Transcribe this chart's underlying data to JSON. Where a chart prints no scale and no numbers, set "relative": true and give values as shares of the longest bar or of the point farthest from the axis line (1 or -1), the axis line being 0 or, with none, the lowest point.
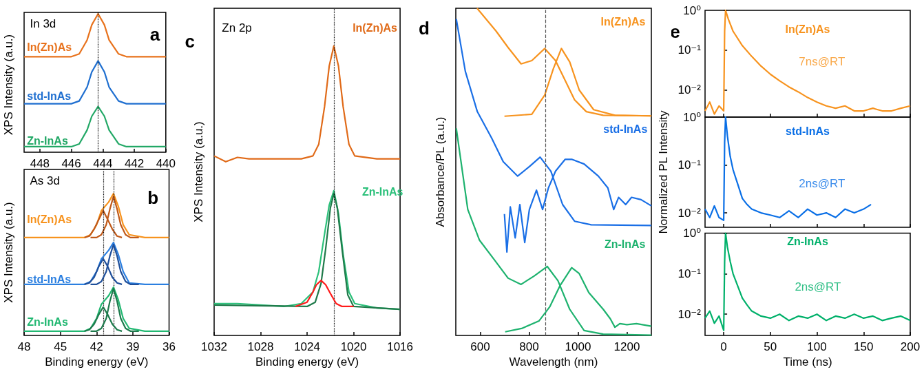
{
  "chart_data": [
    {
      "type": "line",
      "relative": true,
      "ylabel": "XPS Intensity (a.u.)",
      "xlim": [
        449,
        440
      ],
      "xticks": [
        448,
        446,
        444,
        442,
        440
      ],
      "tick_labels": "x",
      "annotations": [
        "In 3d",
        "a"
      ],
      "ref_lines": [
        {
          "axis": "x",
          "value": 444.3,
          "color": "#000000",
          "line_style": "dotted"
        }
      ],
      "series": [
        {
          "name": "In(Zn)As",
          "color": "#e8721c",
          "x": [
            449,
            447,
            446,
            445.5,
            445,
            444.7,
            444.3,
            443.9,
            443.6,
            443,
            442.5,
            441,
            440
          ],
          "values": [
            0.69,
            0.69,
            0.69,
            0.71,
            0.81,
            0.92,
            1,
            0.92,
            0.81,
            0.71,
            0.69,
            0.69,
            0.69
          ]
        },
        {
          "name": "std-InAs",
          "color": "#1f6fd0",
          "x": [
            449,
            447,
            446,
            445.5,
            445,
            444.7,
            444.3,
            443.9,
            443.6,
            443,
            442.5,
            441,
            440
          ],
          "values": [
            0.35,
            0.35,
            0.35,
            0.37,
            0.47,
            0.58,
            0.66,
            0.58,
            0.47,
            0.37,
            0.35,
            0.35,
            0.35
          ]
        },
        {
          "name": "Zn-InAs",
          "color": "#22a866",
          "x": [
            449,
            447,
            446,
            445.5,
            445,
            444.7,
            444.3,
            443.9,
            443.6,
            443,
            442.5,
            441,
            440
          ],
          "values": [
            0.04,
            0.04,
            0.04,
            0.06,
            0.16,
            0.26,
            0.33,
            0.26,
            0.16,
            0.06,
            0.04,
            0.04,
            0.04
          ]
        }
      ]
    },
    {
      "type": "line",
      "relative": true,
      "ylabel": "XPS Intensity (a.u.)",
      "xlabel": "Binding energy (eV)",
      "xlim": [
        48,
        36
      ],
      "xticks": [
        48,
        45,
        42,
        39,
        36
      ],
      "tick_labels": "x",
      "annotations": [
        "As 3d",
        "b"
      ],
      "ref_lines": [
        {
          "axis": "x",
          "value": 41.45,
          "color": "#000000",
          "line_style": "dotted"
        },
        {
          "axis": "x",
          "value": 40.6,
          "color": "#000000",
          "line_style": "dotted"
        }
      ],
      "series": [
        {
          "name": "In(Zn)As",
          "color": "#f7931e",
          "x": [
            48,
            44,
            43,
            42.5,
            42,
            41.6,
            41.3,
            41,
            40.6,
            40.2,
            39.8,
            39.3,
            38,
            36
          ],
          "values": [
            0.69,
            0.69,
            0.69,
            0.71,
            0.78,
            0.88,
            0.91,
            0.94,
            1,
            0.91,
            0.78,
            0.71,
            0.69,
            0.69
          ]
        },
        {
          "color": "#c05a1a",
          "x": [
            42.5,
            42,
            41.6,
            41.2,
            40.9,
            40.6,
            40.3,
            40,
            39.6,
            39.2,
            38.5
          ],
          "values": [
            0.69,
            0.69,
            0.71,
            0.78,
            0.89,
            0.98,
            0.89,
            0.78,
            0.71,
            0.69,
            0.69
          ]
        },
        {
          "color": "#c05a1a",
          "x": [
            43,
            42.6,
            42.2,
            41.8,
            41.45,
            41.1,
            40.7,
            40.3,
            39.9
          ],
          "values": [
            0.69,
            0.7,
            0.75,
            0.82,
            0.88,
            0.82,
            0.75,
            0.7,
            0.69
          ]
        },
        {
          "name": "std-InAs",
          "color": "#2b7fe0",
          "x": [
            48,
            44,
            43,
            42.5,
            42,
            41.6,
            41.3,
            41,
            40.6,
            40.2,
            39.8,
            39.3,
            38,
            36
          ],
          "values": [
            0.36,
            0.36,
            0.36,
            0.38,
            0.45,
            0.54,
            0.57,
            0.6,
            0.655,
            0.57,
            0.45,
            0.37,
            0.36,
            0.36
          ]
        },
        {
          "color": "#1f4f9a",
          "x": [
            42.5,
            42,
            41.6,
            41.2,
            40.9,
            40.6,
            40.3,
            40,
            39.6,
            39.2,
            38.5
          ],
          "values": [
            0.36,
            0.36,
            0.38,
            0.45,
            0.56,
            0.64,
            0.56,
            0.45,
            0.38,
            0.36,
            0.36
          ]
        },
        {
          "color": "#1f4f9a",
          "x": [
            43,
            42.6,
            42.2,
            41.8,
            41.45,
            41.1,
            40.7,
            40.3,
            39.9
          ],
          "values": [
            0.36,
            0.37,
            0.41,
            0.49,
            0.54,
            0.49,
            0.41,
            0.37,
            0.36
          ]
        },
        {
          "name": "Zn-InAs",
          "color": "#22b872",
          "x": [
            48,
            44,
            43,
            42.5,
            42,
            41.6,
            41.3,
            41,
            40.6,
            40.2,
            39.8,
            39.3,
            38,
            36
          ],
          "values": [
            0.03,
            0.03,
            0.03,
            0.05,
            0.12,
            0.22,
            0.25,
            0.28,
            0.34,
            0.25,
            0.12,
            0.05,
            0.03,
            0.03
          ]
        },
        {
          "color": "#1d7a4c",
          "x": [
            42.5,
            42,
            41.6,
            41.2,
            40.9,
            40.6,
            40.3,
            40,
            39.6,
            39.2,
            38.5
          ],
          "values": [
            0.03,
            0.03,
            0.05,
            0.12,
            0.24,
            0.33,
            0.24,
            0.12,
            0.05,
            0.03,
            0.03
          ]
        },
        {
          "color": "#1d7a4c",
          "x": [
            43,
            42.6,
            42.2,
            41.8,
            41.45,
            41.1,
            40.7,
            40.3,
            39.9
          ],
          "values": [
            0.03,
            0.04,
            0.08,
            0.15,
            0.2,
            0.15,
            0.08,
            0.04,
            0.03
          ]
        }
      ]
    },
    {
      "type": "line",
      "relative": true,
      "ylabel": "XPS Intensity (a.u.)",
      "xlabel": "Binding energy (eV)",
      "xlim": [
        1032,
        1016
      ],
      "xticks": [
        1032,
        1028,
        1024,
        1020,
        1016
      ],
      "tick_labels": "x",
      "annotations": [
        "Zn 2p",
        "c"
      ],
      "ref_lines": [
        {
          "axis": "x",
          "value": 1021.7,
          "color": "#000000",
          "line_style": "dotted"
        }
      ],
      "series": [
        {
          "name": "In(Zn)As",
          "color": "#e06a18",
          "x": [
            1032,
            1031,
            1030,
            1029,
            1026,
            1024.5,
            1023.5,
            1023,
            1022.5,
            1022.1,
            1021.7,
            1021.3,
            1020.9,
            1020.4,
            1019.9,
            1018,
            1016
          ],
          "values": [
            0.62,
            0.6,
            0.615,
            0.61,
            0.61,
            0.61,
            0.62,
            0.66,
            0.79,
            0.93,
            1,
            0.93,
            0.79,
            0.66,
            0.62,
            0.61,
            0.61
          ]
        },
        {
          "name": "Zn-InAs",
          "color": "#2bc07a",
          "x": [
            1032,
            1030,
            1026,
            1024.5,
            1023.5,
            1023,
            1022.5,
            1022.1,
            1021.7,
            1021.3,
            1020.9,
            1020.4,
            1019.9,
            1018,
            1016
          ],
          "values": [
            0.11,
            0.11,
            0.1,
            0.11,
            0.15,
            0.22,
            0.35,
            0.45,
            0.5,
            0.42,
            0.28,
            0.15,
            0.11,
            0.095,
            0.09
          ]
        },
        {
          "color": "#1f7a4a",
          "x": [
            1032,
            1024,
            1023.3,
            1022.8,
            1022.4,
            1022,
            1021.7,
            1021.4,
            1021,
            1020.5,
            1020,
            1016
          ],
          "values": [
            0.105,
            0.1,
            0.115,
            0.18,
            0.3,
            0.44,
            0.49,
            0.44,
            0.3,
            0.14,
            0.1,
            0.09
          ]
        },
        {
          "color": "#ff1a1a",
          "x": [
            1025,
            1024,
            1023.5,
            1023.2,
            1022.8,
            1022.4,
            1022,
            1021.5,
            1021,
            1020
          ],
          "values": [
            0.1,
            0.115,
            0.15,
            0.175,
            0.19,
            0.175,
            0.145,
            0.11,
            0.1,
            0.1
          ]
        }
      ]
    },
    {
      "type": "line",
      "relative": true,
      "ylabel": "Absorbance/PL (a.u.)",
      "xlabel": "Wavelength (nm)",
      "xlim": [
        500,
        1300
      ],
      "xticks": [
        600,
        800,
        1000,
        1200
      ],
      "tick_labels": "x",
      "annotations": [
        "d"
      ],
      "ref_lines": [
        {
          "axis": "x",
          "value": 866,
          "color": "#555555",
          "line_style": "dashed"
        }
      ],
      "series": [
        {
          "name": "In(Zn)As",
          "color": "#f7931e",
          "x": [
            587,
            665,
            714,
            767,
            811,
            864,
            908,
            947,
            986,
            1034,
            1103,
            1300
          ],
          "values": [
            1,
            0.93,
            0.88,
            0.83,
            0.84,
            0.877,
            0.84,
            0.78,
            0.72,
            0.684,
            0.673,
            0.671
          ]
        },
        {
          "color": "#f7931e",
          "x": [
            699,
            811,
            864,
            899,
            932,
            966,
            1005,
            1064,
            1151,
            1300
          ],
          "values": [
            0.67,
            0.676,
            0.735,
            0.815,
            0.877,
            0.836,
            0.75,
            0.69,
            0.673,
            0.671
          ]
        },
        {
          "name": "std-InAs",
          "color": "#1a6fe6",
          "x": [
            502,
            539,
            588,
            646,
            694,
            753,
            801,
            845,
            889,
            937,
            986,
            1054,
            1300
          ],
          "values": [
            0.967,
            0.807,
            0.684,
            0.604,
            0.531,
            0.487,
            0.516,
            0.545,
            0.502,
            0.4,
            0.349,
            0.338,
            0.336
          ]
        },
        {
          "color": "#1a6fe6",
          "x": [
            699,
            709,
            723,
            743,
            762,
            782,
            801,
            830,
            855,
            879,
            908,
            947,
            976,
            1025,
            1083,
            1122,
            1146,
            1166,
            1195,
            1219,
            1258,
            1300
          ],
          "values": [
            0.371,
            0.255,
            0.393,
            0.298,
            0.4,
            0.284,
            0.385,
            0.444,
            0.385,
            0.451,
            0.502,
            0.538,
            0.538,
            0.524,
            0.487,
            0.451,
            0.385,
            0.422,
            0.4,
            0.422,
            0.415,
            0.396
          ]
        },
        {
          "name": "Zn-InAs",
          "color": "#1db26e",
          "x": [
            502,
            549,
            597,
            656,
            714,
            767,
            821,
            874,
            918,
            966,
            1025,
            1103,
            1300
          ],
          "values": [
            0.633,
            0.385,
            0.291,
            0.233,
            0.175,
            0.156,
            0.182,
            0.211,
            0.167,
            0.08,
            0.015,
            0.004,
            0.001
          ]
        },
        {
          "color": "#1db26e",
          "x": [
            702,
            772,
            840,
            884,
            927,
            974,
            1005,
            1044,
            1103,
            1132,
            1151,
            1171,
            1200,
            1239,
            1300
          ],
          "values": [
            0.011,
            0.022,
            0.044,
            0.087,
            0.153,
            0.207,
            0.189,
            0.131,
            0.08,
            0.051,
            0.025,
            0.036,
            0.033,
            0.036,
            0.028
          ]
        }
      ]
    },
    {
      "type": "line",
      "log": "y",
      "xlim": [
        -20,
        200
      ],
      "xticks": [
        0,
        50,
        100,
        150,
        200
      ],
      "ylim": [
        0.0021,
        1
      ],
      "yticks": [
        {
          "value": 0.01,
          "label": "10⁻²"
        },
        {
          "value": 0.1,
          "label": "10⁻¹"
        },
        {
          "value": 1,
          "label": "10⁰"
        }
      ],
      "tick_labels": "y",
      "annotations": [
        "7ns@RT",
        "e"
      ],
      "series": [
        {
          "name": "In(Zn)As",
          "color": "#f7931e",
          "x": [
            -20,
            -15,
            -10,
            -5,
            0,
            1,
            2,
            5,
            10,
            20,
            30,
            40,
            50,
            60,
            70,
            80,
            90,
            100,
            110,
            120,
            130,
            140,
            150,
            160,
            170,
            180,
            190,
            200
          ],
          "values": [
            0.003,
            0.005,
            0.0025,
            0.004,
            0.003,
            0.3,
            1,
            0.6,
            0.3,
            0.13,
            0.07,
            0.04,
            0.025,
            0.017,
            0.012,
            0.009,
            0.0065,
            0.005,
            0.004,
            0.0035,
            0.004,
            0.003,
            0.003,
            0.0035,
            0.003,
            0.003,
            0.0035,
            0.004
          ]
        }
      ]
    },
    {
      "type": "line",
      "log": "y",
      "ylabel": "Normalized PL Intensity",
      "xlim": [
        -20,
        200
      ],
      "xticks": [
        0,
        50,
        100,
        150,
        200
      ],
      "ylim": [
        0.005,
        1
      ],
      "yticks": [
        {
          "value": 0.01,
          "label": "10⁻²"
        },
        {
          "value": 0.1,
          "label": "10⁻¹"
        },
        {
          "value": 1,
          "label": "10⁰"
        }
      ],
      "tick_labels": "y",
      "annotations": [
        "2ns@RT"
      ],
      "series": [
        {
          "name": "std-InAs",
          "color": "#0a6fe6",
          "x": [
            -20,
            -15,
            -10,
            -5,
            0,
            1,
            2,
            4,
            7,
            10,
            15,
            20,
            25,
            30,
            40,
            50,
            60,
            70,
            80,
            90,
            100,
            110,
            120,
            130,
            140,
            150,
            158
          ],
          "values": [
            0.012,
            0.008,
            0.014,
            0.008,
            0.007,
            0.3,
            1,
            0.4,
            0.15,
            0.08,
            0.04,
            0.02,
            0.015,
            0.012,
            0.01,
            0.009,
            0.008,
            0.011,
            0.008,
            0.012,
            0.009,
            0.01,
            0.008,
            0.012,
            0.01,
            0.012,
            0.015
          ]
        }
      ]
    },
    {
      "type": "line",
      "log": "y",
      "xlabel": "Time (ns)",
      "xlim": [
        -20,
        200
      ],
      "xticks": [
        0,
        50,
        100,
        150,
        200
      ],
      "ylim": [
        0.003,
        1
      ],
      "yticks": [
        {
          "value": 0.01,
          "label": "10⁻²"
        },
        {
          "value": 0.1,
          "label": "10⁻¹"
        },
        {
          "value": 1,
          "label": "10⁰"
        }
      ],
      "annotations": [
        "2ns@RT"
      ],
      "series": [
        {
          "name": "Zn-InAs",
          "color": "#00b06a",
          "x": [
            -20,
            -15,
            -10,
            -5,
            0,
            1,
            2,
            4,
            7,
            10,
            15,
            20,
            25,
            30,
            40,
            50,
            60,
            70,
            80,
            90,
            100,
            110,
            120,
            130,
            140,
            150,
            160,
            170,
            180,
            190,
            200
          ],
          "values": [
            0.008,
            0.012,
            0.006,
            0.009,
            0.004,
            0.2,
            1,
            0.45,
            0.2,
            0.1,
            0.05,
            0.025,
            0.017,
            0.012,
            0.009,
            0.008,
            0.01,
            0.007,
            0.009,
            0.008,
            0.01,
            0.007,
            0.009,
            0.008,
            0.01,
            0.008,
            0.009,
            0.007,
            0.008,
            0.009,
            0.007
          ]
        }
      ]
    }
  ]
}
